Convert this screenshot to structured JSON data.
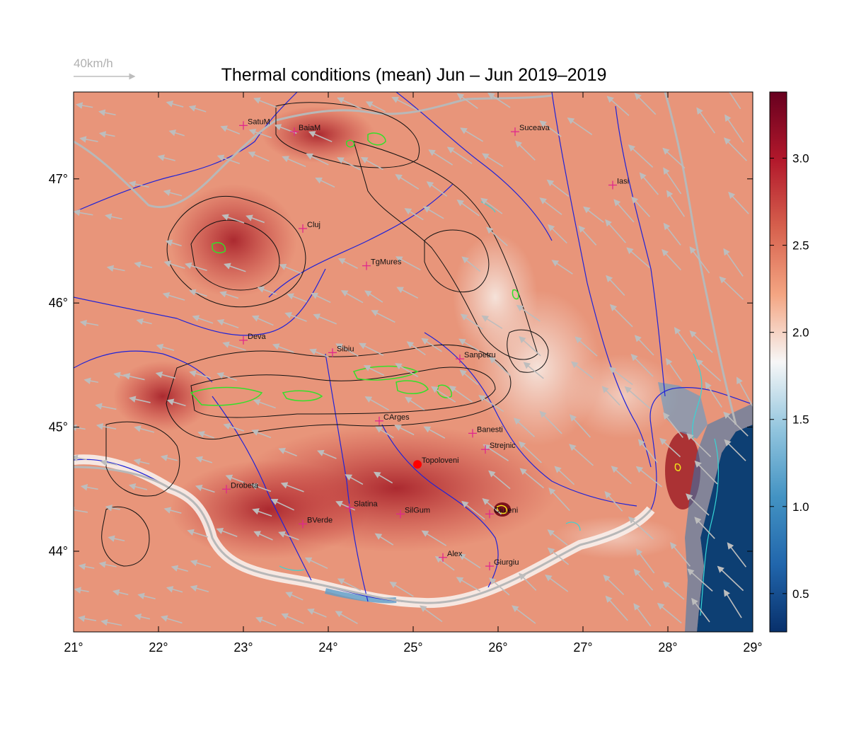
{
  "title": "Thermal conditions (mean) Jun – Jun  2019–2019",
  "wind_legend": {
    "label": "40km/h"
  },
  "colors": {
    "land_base": "#e8957a",
    "hot": "#c7393a",
    "very_hot": "#8e1b24",
    "cool": "#f3dcd2",
    "sea": "#0d3f73",
    "sea_mid": "#2f77b0",
    "river": "#1f23d8",
    "contour": "#111111",
    "high_contour": "#33e02a",
    "coast_contour": "#36d6d6",
    "wind_arrow": "#bdbdbd",
    "station": "#e0288c",
    "marker": "#ff0000"
  },
  "axes": {
    "lon_ticks": [
      "21°",
      "22°",
      "23°",
      "24°",
      "25°",
      "26°",
      "27°",
      "28°",
      "29°"
    ],
    "lat_ticks": [
      "44°",
      "45°",
      "46°",
      "47°"
    ],
    "lon_range": [
      21,
      29
    ],
    "lat_range": [
      43.35,
      47.7
    ]
  },
  "colorbar": {
    "ticks": [
      "0.5",
      "1.0",
      "1.5",
      "2.0",
      "2.5",
      "3.0"
    ],
    "tick_values": [
      0.5,
      1.0,
      1.5,
      2.0,
      2.5,
      3.0
    ],
    "range": [
      0.28,
      3.38
    ],
    "colors": [
      "#08306b",
      "#2166ac",
      "#4393c3",
      "#92c5de",
      "#f7f7f7",
      "#f4a582",
      "#d6604d",
      "#b2182b",
      "#67001f"
    ]
  },
  "stations": [
    {
      "name": "SatuM",
      "lon": 23.0,
      "lat": 47.43
    },
    {
      "name": "BaiaM",
      "lon": 23.6,
      "lat": 47.38
    },
    {
      "name": "Suceava",
      "lon": 26.2,
      "lat": 47.38
    },
    {
      "name": "Iasi",
      "lon": 27.35,
      "lat": 46.95
    },
    {
      "name": "Cluj",
      "lon": 23.7,
      "lat": 46.6
    },
    {
      "name": "TgMures",
      "lon": 24.45,
      "lat": 46.3
    },
    {
      "name": "Deva",
      "lon": 23.0,
      "lat": 45.7
    },
    {
      "name": "Sibiu",
      "lon": 24.05,
      "lat": 45.6
    },
    {
      "name": "Sanpetru",
      "lon": 25.55,
      "lat": 45.55
    },
    {
      "name": "CArges",
      "lon": 24.6,
      "lat": 45.05
    },
    {
      "name": "Banesti",
      "lon": 25.7,
      "lat": 44.95
    },
    {
      "name": "Strejnic",
      "lon": 25.85,
      "lat": 44.82
    },
    {
      "name": "Topoloveni",
      "lon": 25.05,
      "lat": 44.7
    },
    {
      "name": "Drobeta",
      "lon": 22.8,
      "lat": 44.5
    },
    {
      "name": "Slatina",
      "lon": 24.25,
      "lat": 44.35
    },
    {
      "name": "SilGum",
      "lon": 24.85,
      "lat": 44.3
    },
    {
      "name": "Calarasi",
      "label": "Ciu.eni",
      "lon": 25.9,
      "lat": 44.3
    },
    {
      "name": "BVerde",
      "lon": 23.7,
      "lat": 44.22
    },
    {
      "name": "Alex",
      "lon": 25.35,
      "lat": 43.95
    },
    {
      "name": "Giurgiu",
      "lon": 25.9,
      "lat": 43.88
    }
  ],
  "highlight_station": "Topoloveni"
}
